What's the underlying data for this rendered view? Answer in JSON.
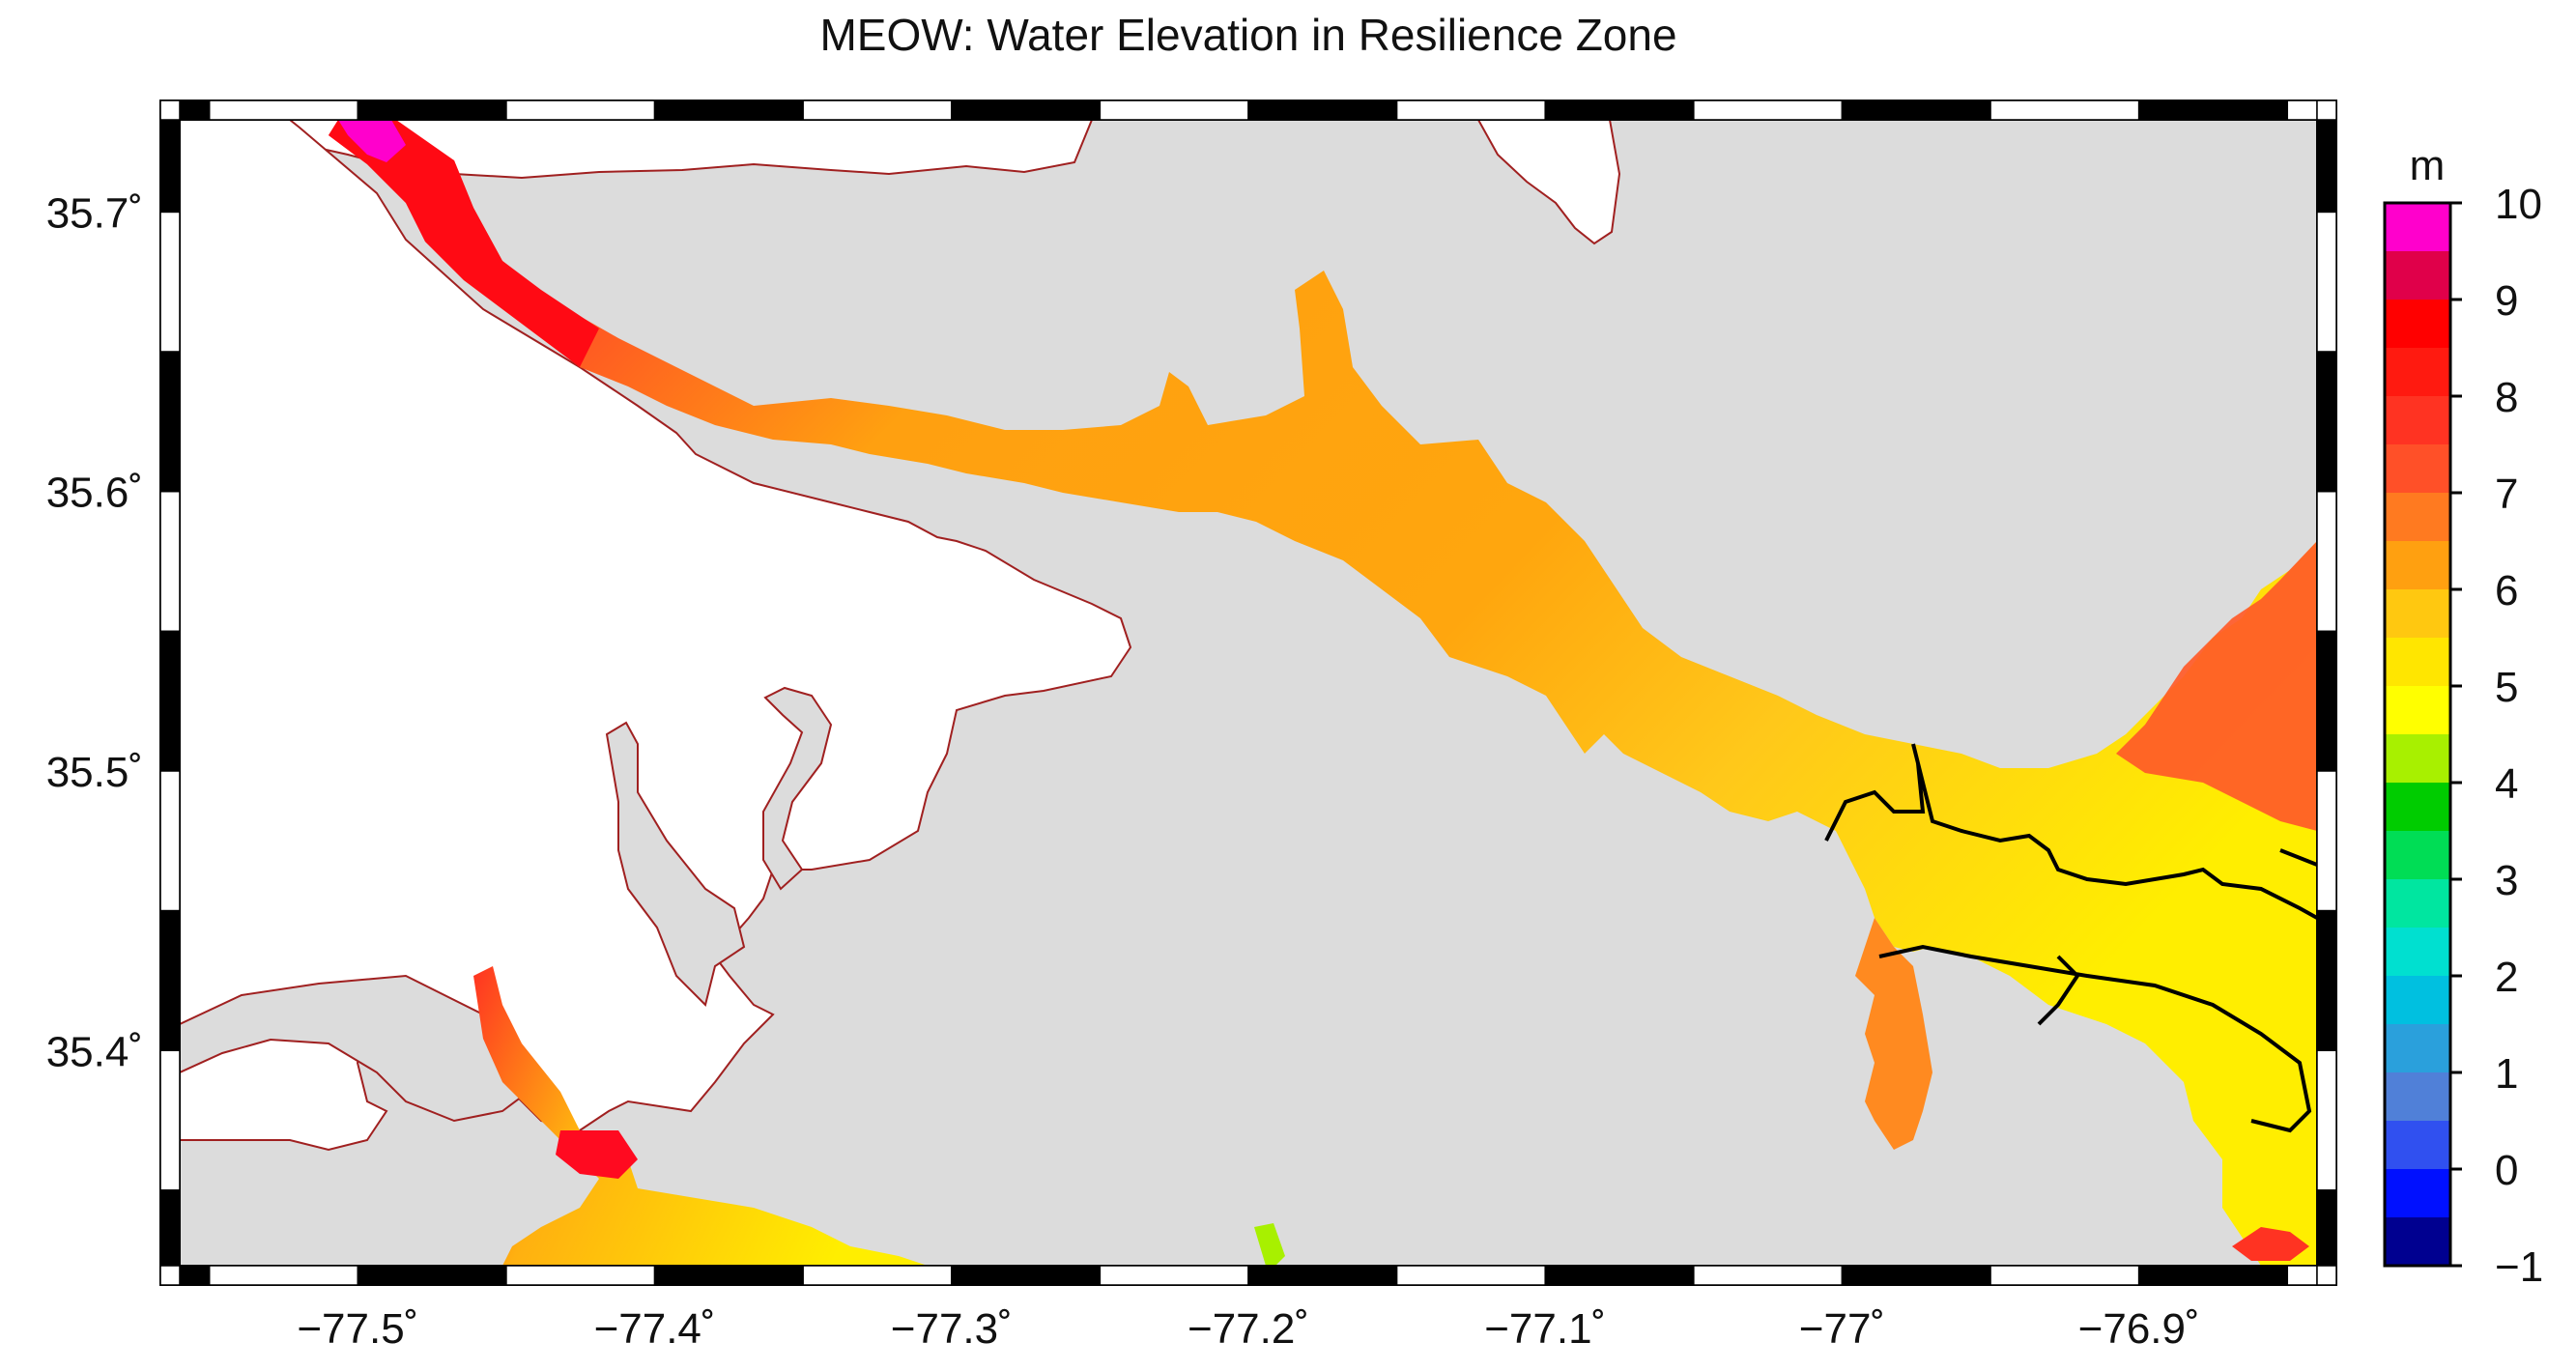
{
  "title": "MEOW: Water Elevation in Resilience Zone",
  "x_ticks": [
    {
      "value": -77.5,
      "label": "−77.5˚"
    },
    {
      "value": -77.4,
      "label": "−77.4˚"
    },
    {
      "value": -77.3,
      "label": "−77.3˚"
    },
    {
      "value": -77.2,
      "label": "−77.2˚"
    },
    {
      "value": -77.1,
      "label": "−77.1˚"
    },
    {
      "value": -77.0,
      "label": "−77˚"
    },
    {
      "value": -76.9,
      "label": "−76.9˚"
    }
  ],
  "y_ticks": [
    {
      "value": 35.7,
      "label": "35.7˚"
    },
    {
      "value": 35.6,
      "label": "35.6˚"
    },
    {
      "value": 35.5,
      "label": "35.5˚"
    },
    {
      "value": 35.4,
      "label": "35.4˚"
    }
  ],
  "colorbar": {
    "unit": "m",
    "min": -1,
    "max": 10,
    "tick_labels": [
      "10",
      "9",
      "8",
      "7",
      "6",
      "5",
      "4",
      "3",
      "2",
      "1",
      "0",
      "−1"
    ],
    "bands": [
      {
        "from": 9.5,
        "to": 10,
        "color": "#ff00cc"
      },
      {
        "from": 9,
        "to": 9.5,
        "color": "#e0004a"
      },
      {
        "from": 8.5,
        "to": 9,
        "color": "#ff0000"
      },
      {
        "from": 8,
        "to": 8.5,
        "color": "#ff1a10"
      },
      {
        "from": 7.5,
        "to": 8,
        "color": "#ff3322"
      },
      {
        "from": 7,
        "to": 7.5,
        "color": "#ff5028"
      },
      {
        "from": 6.5,
        "to": 7,
        "color": "#ff7a20"
      },
      {
        "from": 6,
        "to": 6.5,
        "color": "#ffa010"
      },
      {
        "from": 5.5,
        "to": 6,
        "color": "#ffc810"
      },
      {
        "from": 5,
        "to": 5.5,
        "color": "#ffe600"
      },
      {
        "from": 4.5,
        "to": 5,
        "color": "#ffff00"
      },
      {
        "from": 4,
        "to": 4.5,
        "color": "#a8f000"
      },
      {
        "from": 3.5,
        "to": 4,
        "color": "#00cc00"
      },
      {
        "from": 3,
        "to": 3.5,
        "color": "#00dd55"
      },
      {
        "from": 2.5,
        "to": 3,
        "color": "#00e6a0"
      },
      {
        "from": 2,
        "to": 2.5,
        "color": "#00e0d0"
      },
      {
        "from": 1.5,
        "to": 2,
        "color": "#00c0e0"
      },
      {
        "from": 1,
        "to": 1.5,
        "color": "#2aa0dc"
      },
      {
        "from": 0.5,
        "to": 1,
        "color": "#5080d8"
      },
      {
        "from": 0,
        "to": 0.5,
        "color": "#3050f0"
      },
      {
        "from": -0.5,
        "to": 0,
        "color": "#0010ff"
      },
      {
        "from": -1,
        "to": -0.5,
        "color": "#000090"
      }
    ]
  },
  "colors": {
    "land": "#dcdcdc",
    "background_water": "#ffffff",
    "coastline": "#a02020",
    "frame": "#000000"
  }
}
